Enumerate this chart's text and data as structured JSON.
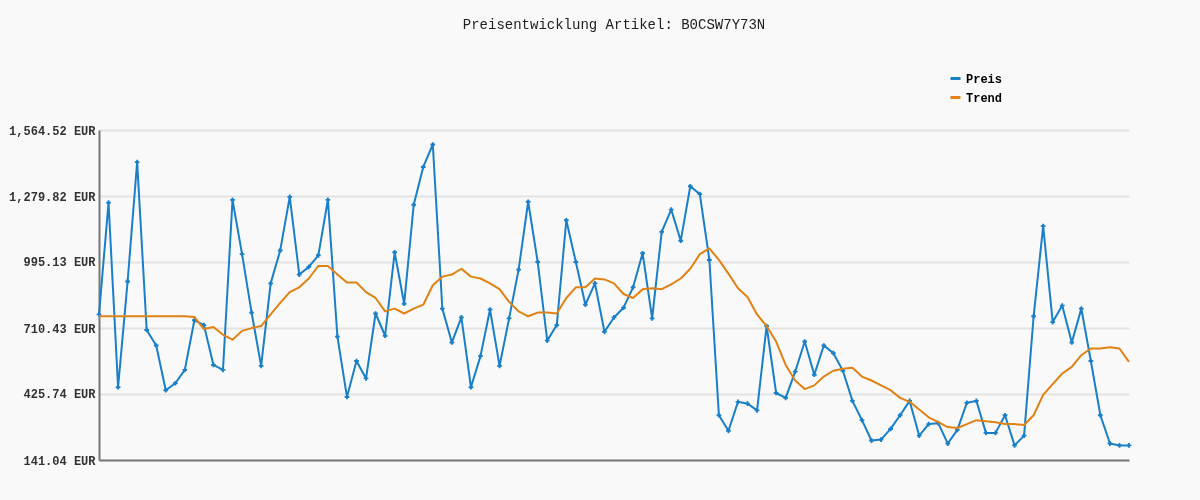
{
  "chart_data": {
    "type": "line",
    "title": "Preisentwicklung Artikel: B0CSW7Y73N",
    "categories": [
      null,
      null,
      null,
      null,
      null,
      null,
      null,
      null,
      null,
      null,
      null,
      null,
      null,
      null,
      null,
      null,
      null,
      null,
      null,
      null,
      null,
      null,
      null,
      null,
      null,
      null,
      null,
      null,
      null,
      null,
      null,
      null,
      null,
      null,
      null,
      null,
      null,
      null,
      null,
      null,
      null,
      null,
      null,
      null,
      null,
      null,
      null,
      null,
      null,
      null,
      null,
      null,
      null,
      null,
      null,
      null,
      null,
      null,
      null,
      null,
      null,
      null,
      null,
      null,
      null,
      null,
      null,
      null,
      null,
      null,
      null,
      null,
      null,
      null,
      null,
      null,
      null,
      null,
      null,
      null,
      null,
      null,
      null,
      null,
      null,
      null,
      null,
      null,
      null,
      null,
      null,
      null,
      null,
      null,
      null,
      null,
      null,
      null,
      null,
      null,
      null,
      null,
      null,
      null,
      null,
      null,
      null,
      null,
      null
    ],
    "series": [
      {
        "name": "Preis",
        "color": "#1a7fc9",
        "marker": "cross",
        "values": [
          769,
          1251,
          455,
          911,
          1426,
          702,
          635,
          442,
          472,
          530,
          744,
          723,
          551,
          530,
          1263,
          1029,
          777,
          547,
          903,
          1045,
          1276,
          941,
          974,
          1024,
          1263,
          673,
          413,
          568,
          493,
          773,
          677,
          1037,
          815,
          1242,
          1405,
          1502,
          794,
          648,
          756,
          455,
          589,
          790,
          547,
          752,
          962,
          1255,
          995,
          656,
          723,
          1175,
          995,
          811,
          903,
          694,
          756,
          798,
          886,
          1033,
          752,
          1125,
          1221,
          1087,
          1322,
          1288,
          1004,
          334,
          267,
          392,
          384,
          355,
          719,
          430,
          409,
          522,
          652,
          509,
          635,
          602,
          526,
          396,
          313,
          225,
          229,
          275,
          334,
          396,
          246,
          296,
          300,
          212,
          271,
          388,
          396,
          258,
          258,
          334,
          204,
          246,
          761,
          1150,
          736,
          807,
          648,
          794,
          568,
          334,
          212,
          204,
          204
        ]
      },
      {
        "name": "Trend",
        "color": "#e08214",
        "marker": "none",
        "values": [
          761,
          761,
          761,
          761,
          761,
          761,
          761,
          761,
          761,
          761,
          758,
          706,
          715,
          681,
          660,
          698,
          710,
          719,
          769,
          819,
          865,
          886,
          924,
          978,
          978,
          941,
          907,
          907,
          865,
          840,
          782,
          794,
          773,
          794,
          811,
          895,
          932,
          941,
          966,
          932,
          924,
          903,
          878,
          823,
          782,
          761,
          777,
          777,
          773,
          840,
          886,
          886,
          924,
          920,
          903,
          857,
          840,
          878,
          882,
          878,
          899,
          924,
          966,
          1029,
          1054,
          1004,
          945,
          882,
          844,
          769,
          719,
          652,
          551,
          484,
          447,
          463,
          501,
          526,
          535,
          539,
          501,
          484,
          463,
          442,
          409,
          392,
          359,
          325,
          304,
          283,
          279,
          296,
          313,
          308,
          304,
          296,
          296,
          292,
          334,
          422,
          468,
          514,
          543,
          593,
          622,
          622,
          627,
          622,
          564
        ]
      }
    ],
    "ylim": [
      141.04,
      1564.52
    ],
    "yticks": [
      {
        "value": 141.04,
        "label": "141.04 EUR"
      },
      {
        "value": 425.74,
        "label": "425.74 EUR"
      },
      {
        "value": 710.43,
        "label": "710.43 EUR"
      },
      {
        "value": 995.13,
        "label": "995.13 EUR"
      },
      {
        "value": 1279.82,
        "label": "1,279.82 EUR"
      },
      {
        "value": 1564.52,
        "label": "1,564.52 EUR"
      }
    ],
    "grid": "y",
    "legend": "top right",
    "tick_labels": "y",
    "line_style": "solid"
  }
}
